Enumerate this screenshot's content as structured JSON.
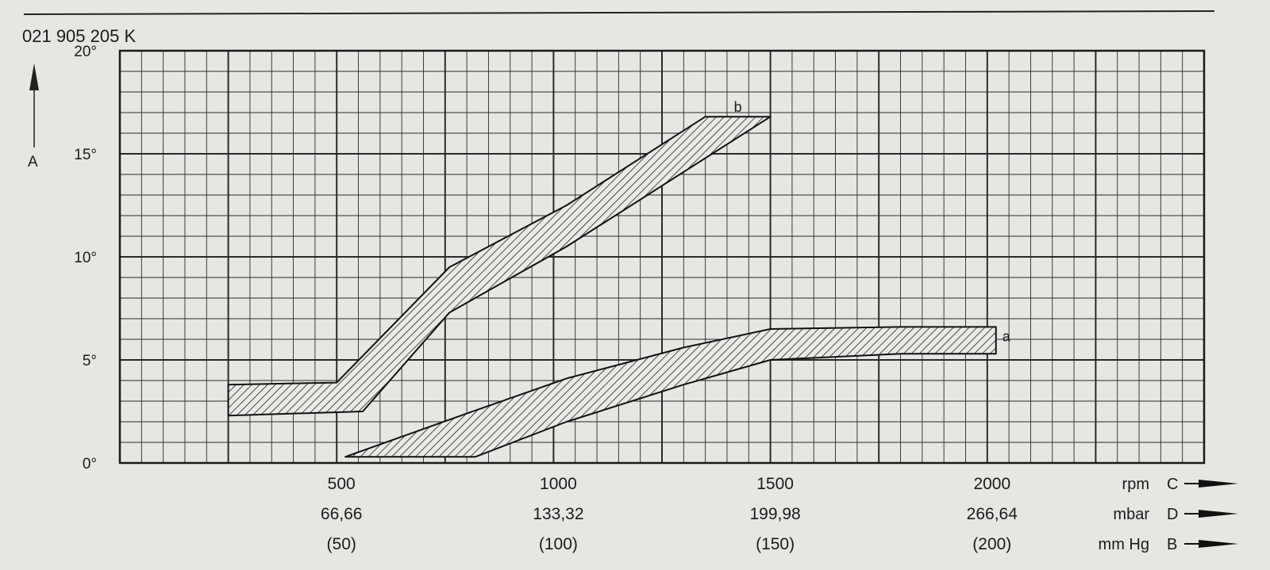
{
  "part_number": "021 905 205 K",
  "chart_data": {
    "type": "area",
    "y_axis": {
      "letter": "A",
      "ticks": [
        "0°",
        "5°",
        "10°",
        "15°",
        "20°"
      ],
      "range": [
        0,
        20
      ]
    },
    "x_axis": {
      "range": [
        0,
        2500
      ],
      "ticks": [
        {
          "rpm": "500",
          "mbar": "66,66",
          "mmhg": "(50)"
        },
        {
          "rpm": "1000",
          "mbar": "133,32",
          "mmhg": "(100)"
        },
        {
          "rpm": "1500",
          "mbar": "199,98",
          "mmhg": "(150)"
        },
        {
          "rpm": "2000",
          "mbar": "266,64",
          "mmhg": "(200)"
        }
      ],
      "unit_rows": [
        {
          "unit": "rpm",
          "letter": "C"
        },
        {
          "unit": "mbar",
          "letter": "D"
        },
        {
          "unit": "mm Hg",
          "letter": "B"
        }
      ]
    },
    "grid": true,
    "series": [
      {
        "name": "b",
        "upper": [
          [
            250,
            3.8
          ],
          [
            500,
            3.9
          ],
          [
            760,
            9.5
          ],
          [
            1030,
            12.5
          ],
          [
            1350,
            16.8
          ],
          [
            1500,
            16.8
          ]
        ],
        "lower": [
          [
            250,
            2.3
          ],
          [
            560,
            2.5
          ],
          [
            760,
            7.3
          ],
          [
            1030,
            10.5
          ],
          [
            1500,
            16.8
          ]
        ]
      },
      {
        "name": "a",
        "upper": [
          [
            520,
            0.3
          ],
          [
            800,
            2.4
          ],
          [
            1030,
            4.1
          ],
          [
            1300,
            5.6
          ],
          [
            1500,
            6.5
          ],
          [
            1800,
            6.6
          ],
          [
            2020,
            6.6
          ]
        ],
        "lower": [
          [
            520,
            0.3
          ],
          [
            820,
            0.3
          ],
          [
            1030,
            2.0
          ],
          [
            1300,
            3.8
          ],
          [
            1500,
            5.0
          ],
          [
            1800,
            5.3
          ],
          [
            2020,
            5.3
          ]
        ]
      }
    ]
  }
}
